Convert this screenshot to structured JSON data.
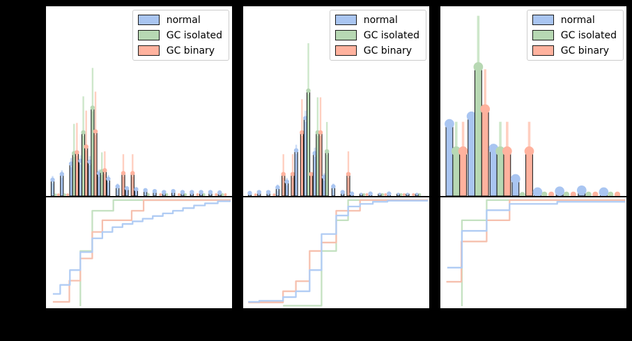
{
  "figure": {
    "background_color": "#000000",
    "panel_background": "#ffffff",
    "axis_text_visible": false,
    "bar_edge_color": "#111111"
  },
  "legend": {
    "position": "upper right",
    "items": [
      {
        "label": "normal",
        "color": "#a9c5f1",
        "err_color": "#cadcf7",
        "line_color": "#b0ccf4"
      },
      {
        "label": "GC isolated",
        "color": "#b7d8b3",
        "err_color": "#cde7ca",
        "line_color": "#c4e1c1"
      },
      {
        "label": "GC binary",
        "color": "#ffb29e",
        "err_color": "#ffcfc0",
        "line_color": "#f6c0ae"
      }
    ]
  },
  "chart_data": [
    {
      "type": "bar",
      "panel": "top-left",
      "grid": false,
      "ylim": [
        0,
        1
      ],
      "n_bins": 19,
      "series": [
        {
          "name": "normal",
          "color": "#a9c5f1",
          "err_color": "#cadcf7",
          "values": [
            0.085,
            0.115,
            0.17,
            0.185,
            0.18,
            0.12,
            0.09,
            0.05,
            0.04,
            0.035,
            0.03,
            0.025,
            0.02,
            0.025,
            0.02,
            0.02,
            0.02,
            0.02,
            0.018
          ],
          "yerr": [
            0.02,
            0.02,
            0.03,
            0.03,
            0.03,
            0.02,
            0.02,
            0.015,
            0,
            0,
            0,
            0,
            0,
            0,
            0,
            0,
            0,
            0,
            0
          ]
        },
        {
          "name": "GC isolated",
          "color": "#b7d8b3",
          "err_color": "#cde7ca",
          "values": [
            0.006,
            0.006,
            0.225,
            0.335,
            0.465,
            0.13,
            0,
            0,
            0,
            0,
            0.007,
            0,
            0.007,
            0,
            0.007,
            0,
            0.007,
            0,
            0.007
          ],
          "yerr": [
            0,
            0,
            0.155,
            0.19,
            0.21,
            0.1,
            0,
            0,
            0,
            0,
            0,
            0,
            0,
            0,
            0,
            0,
            0,
            0,
            0
          ]
        },
        {
          "name": "GC binary",
          "color": "#ffb29e",
          "err_color": "#ffcfc0",
          "values": [
            0.006,
            0.006,
            0.23,
            0.26,
            0.34,
            0.135,
            0,
            0.12,
            0.12,
            0,
            0,
            0.007,
            0,
            0.007,
            0,
            0.007,
            0,
            0.007,
            0.007
          ],
          "yerr": [
            0,
            0,
            0.155,
            0.19,
            0.21,
            0.1,
            0,
            0.1,
            0.1,
            0,
            0,
            0,
            0,
            0,
            0,
            0,
            0,
            0,
            0
          ]
        }
      ]
    },
    {
      "type": "line",
      "panel": "bottom-left",
      "style": "step-cdf",
      "xlim": [
        0,
        1
      ],
      "ylim": [
        0,
        1.05
      ],
      "series": [
        {
          "name": "GC isolated",
          "line_color": "#c4e1c1",
          "points": [
            [
              0.18,
              0.0
            ],
            [
              0.18,
              0.52
            ],
            [
              0.245,
              0.52
            ],
            [
              0.245,
              0.9
            ],
            [
              0.36,
              0.9
            ],
            [
              0.36,
              1.0
            ],
            [
              1.0,
              1.0
            ]
          ]
        },
        {
          "name": "GC binary",
          "line_color": "#f6c0ae",
          "points": [
            [
              0.03,
              0.04
            ],
            [
              0.12,
              0.04
            ],
            [
              0.12,
              0.24
            ],
            [
              0.18,
              0.24
            ],
            [
              0.18,
              0.45
            ],
            [
              0.245,
              0.45
            ],
            [
              0.245,
              0.7
            ],
            [
              0.3,
              0.7
            ],
            [
              0.3,
              0.81
            ],
            [
              0.46,
              0.81
            ],
            [
              0.46,
              0.9
            ],
            [
              0.525,
              0.9
            ],
            [
              0.525,
              1.0
            ],
            [
              1.0,
              1.0
            ]
          ]
        },
        {
          "name": "normal",
          "line_color": "#b0ccf4",
          "points": [
            [
              0.03,
              0.115
            ],
            [
              0.07,
              0.115
            ],
            [
              0.07,
              0.2
            ],
            [
              0.123,
              0.2
            ],
            [
              0.123,
              0.34
            ],
            [
              0.18,
              0.34
            ],
            [
              0.18,
              0.51
            ],
            [
              0.245,
              0.51
            ],
            [
              0.245,
              0.64
            ],
            [
              0.3,
              0.64
            ],
            [
              0.3,
              0.7
            ],
            [
              0.355,
              0.7
            ],
            [
              0.355,
              0.745
            ],
            [
              0.41,
              0.745
            ],
            [
              0.41,
              0.775
            ],
            [
              0.465,
              0.775
            ],
            [
              0.465,
              0.8
            ],
            [
              0.52,
              0.8
            ],
            [
              0.52,
              0.825
            ],
            [
              0.575,
              0.825
            ],
            [
              0.575,
              0.85
            ],
            [
              0.63,
              0.85
            ],
            [
              0.63,
              0.875
            ],
            [
              0.685,
              0.875
            ],
            [
              0.685,
              0.9
            ],
            [
              0.74,
              0.9
            ],
            [
              0.74,
              0.925
            ],
            [
              0.8,
              0.925
            ],
            [
              0.8,
              0.95
            ],
            [
              0.86,
              0.95
            ],
            [
              0.86,
              0.97
            ],
            [
              0.93,
              0.97
            ],
            [
              0.93,
              0.99
            ],
            [
              1.0,
              0.99
            ]
          ]
        }
      ]
    },
    {
      "type": "bar",
      "panel": "top-middle",
      "grid": false,
      "ylim": [
        0,
        1
      ],
      "n_bins": 19,
      "series": [
        {
          "name": "normal",
          "color": "#a9c5f1",
          "err_color": "#cadcf7",
          "values": [
            0.015,
            0.02,
            0.02,
            0.045,
            0.075,
            0.24,
            0.41,
            0.225,
            0.1,
            0.05,
            0.02,
            0.012,
            0.01,
            0.012,
            0.01,
            0.012,
            0.01,
            0.01,
            0.01
          ],
          "yerr": [
            0,
            0,
            0,
            0.015,
            0.02,
            0.03,
            0.04,
            0.03,
            0.02,
            0.015,
            0,
            0,
            0,
            0,
            0,
            0,
            0,
            0,
            0
          ]
        },
        {
          "name": "GC isolated",
          "color": "#b7d8b3",
          "err_color": "#cde7ca",
          "values": [
            0,
            0,
            0,
            0,
            0,
            0,
            0.555,
            0.335,
            0.235,
            0,
            0,
            0,
            0.007,
            0,
            0.007,
            0,
            0.007,
            0,
            0.007
          ],
          "yerr": [
            0,
            0,
            0,
            0,
            0,
            0,
            0.25,
            0.185,
            0.155,
            0,
            0,
            0,
            0,
            0,
            0,
            0,
            0,
            0,
            0
          ]
        },
        {
          "name": "GC binary",
          "color": "#ffb29e",
          "err_color": "#ffcfc0",
          "values": [
            0.006,
            0,
            0.006,
            0.115,
            0.115,
            0.335,
            0.115,
            0.335,
            0,
            0,
            0.115,
            0,
            0.007,
            0,
            0.007,
            0,
            0.007,
            0.007,
            0
          ],
          "yerr": [
            0,
            0,
            0,
            0.105,
            0.105,
            0.175,
            0,
            0.185,
            0,
            0,
            0.12,
            0,
            0,
            0,
            0,
            0,
            0,
            0,
            0
          ]
        }
      ]
    },
    {
      "type": "line",
      "panel": "bottom-middle",
      "style": "step-cdf",
      "xlim": [
        0,
        1
      ],
      "ylim": [
        0,
        1.05
      ],
      "series": [
        {
          "name": "GC isolated",
          "line_color": "#c4e1c1",
          "points": [
            [
              0.21,
              0.004
            ],
            [
              0.42,
              0.004
            ],
            [
              0.42,
              0.52
            ],
            [
              0.5,
              0.52
            ],
            [
              0.5,
              0.81
            ],
            [
              0.565,
              0.81
            ],
            [
              0.565,
              1.0
            ],
            [
              1.0,
              1.0
            ]
          ]
        },
        {
          "name": "GC binary",
          "line_color": "#f6c0ae",
          "points": [
            [
              0.02,
              0.035
            ],
            [
              0.21,
              0.035
            ],
            [
              0.21,
              0.14
            ],
            [
              0.28,
              0.14
            ],
            [
              0.28,
              0.235
            ],
            [
              0.355,
              0.235
            ],
            [
              0.355,
              0.52
            ],
            [
              0.42,
              0.52
            ],
            [
              0.42,
              0.6
            ],
            [
              0.5,
              0.6
            ],
            [
              0.5,
              0.9
            ],
            [
              0.63,
              0.9
            ],
            [
              0.63,
              1.0
            ],
            [
              1.0,
              1.0
            ]
          ]
        },
        {
          "name": "normal",
          "line_color": "#b0ccf4",
          "points": [
            [
              0.02,
              0.04
            ],
            [
              0.08,
              0.04
            ],
            [
              0.08,
              0.05
            ],
            [
              0.21,
              0.05
            ],
            [
              0.21,
              0.085
            ],
            [
              0.28,
              0.085
            ],
            [
              0.28,
              0.14
            ],
            [
              0.355,
              0.14
            ],
            [
              0.355,
              0.34
            ],
            [
              0.42,
              0.34
            ],
            [
              0.42,
              0.68
            ],
            [
              0.5,
              0.68
            ],
            [
              0.5,
              0.855
            ],
            [
              0.565,
              0.855
            ],
            [
              0.565,
              0.94
            ],
            [
              0.63,
              0.94
            ],
            [
              0.63,
              0.965
            ],
            [
              0.7,
              0.965
            ],
            [
              0.7,
              0.985
            ],
            [
              0.78,
              0.985
            ],
            [
              0.78,
              0.995
            ],
            [
              1.0,
              0.995
            ]
          ]
        }
      ]
    },
    {
      "type": "bar",
      "panel": "top-right",
      "grid": false,
      "ylim": [
        0,
        1
      ],
      "n_bins": 8,
      "series": [
        {
          "name": "normal",
          "color": "#a9c5f1",
          "err_color": "#cadcf7",
          "values": [
            0.38,
            0.42,
            0.25,
            0.09,
            0.02,
            0.025,
            0.03,
            0.02
          ],
          "yerr": [
            0.025,
            0.025,
            0.02,
            0,
            0,
            0,
            0,
            0
          ]
        },
        {
          "name": "GC isolated",
          "color": "#b7d8b3",
          "err_color": "#cde7ca",
          "values": [
            0.236,
            0.68,
            0.236,
            0.006,
            0.008,
            0.008,
            0.008,
            0.008
          ],
          "yerr": [
            0.155,
            0.27,
            0.155,
            0,
            0,
            0,
            0,
            0
          ]
        },
        {
          "name": "GC binary",
          "color": "#ffb29e",
          "err_color": "#ffcfc0",
          "values": [
            0.236,
            0.458,
            0.236,
            0.236,
            0.008,
            0.008,
            0.008,
            0.008
          ],
          "yerr": [
            0.155,
            0.21,
            0.155,
            0.155,
            0,
            0,
            0,
            0
          ]
        }
      ]
    },
    {
      "type": "line",
      "panel": "bottom-right",
      "style": "step-cdf",
      "xlim": [
        0,
        1
      ],
      "ylim": [
        0,
        1.05
      ],
      "series": [
        {
          "name": "GC isolated",
          "line_color": "#c4e1c1",
          "points": [
            [
              0.11,
              0.0
            ],
            [
              0.11,
              0.81
            ],
            [
              0.245,
              0.81
            ],
            [
              0.245,
              1.0
            ],
            [
              1.0,
              1.0
            ]
          ]
        },
        {
          "name": "GC binary",
          "line_color": "#f6c0ae",
          "points": [
            [
              0.025,
              0.23
            ],
            [
              0.107,
              0.23
            ],
            [
              0.107,
              0.61
            ],
            [
              0.245,
              0.61
            ],
            [
              0.245,
              0.81
            ],
            [
              0.37,
              0.81
            ],
            [
              0.37,
              1.0
            ],
            [
              1.0,
              1.0
            ]
          ]
        },
        {
          "name": "normal",
          "line_color": "#b0ccf4",
          "points": [
            [
              0.03,
              0.363
            ],
            [
              0.11,
              0.363
            ],
            [
              0.11,
              0.71
            ],
            [
              0.245,
              0.71
            ],
            [
              0.245,
              0.905
            ],
            [
              0.37,
              0.905
            ],
            [
              0.37,
              0.965
            ],
            [
              0.63,
              0.965
            ],
            [
              0.63,
              0.985
            ],
            [
              1.0,
              0.985
            ]
          ]
        }
      ]
    }
  ]
}
